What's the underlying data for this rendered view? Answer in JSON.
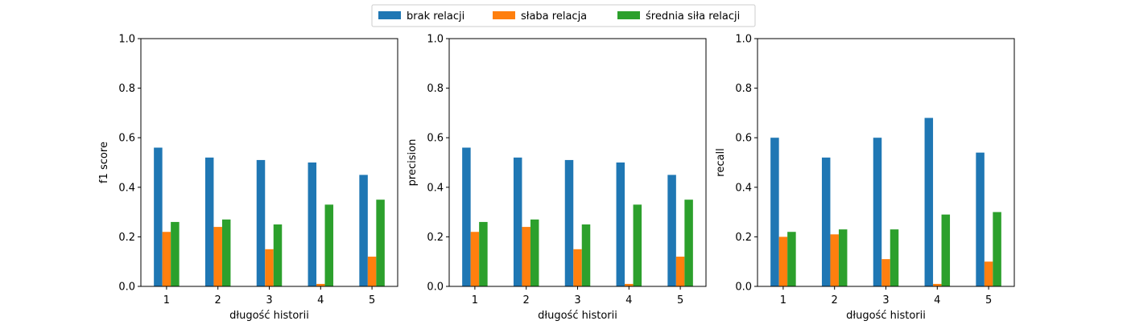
{
  "legend": {
    "placement": "top-center",
    "entries": [
      {
        "label": "brak relacji",
        "color": "#1f77b4"
      },
      {
        "label": "słaba relacja",
        "color": "#ff7f0e"
      },
      {
        "label": "średnia siła relacji",
        "color": "#2ca02c"
      }
    ]
  },
  "chart_data": [
    {
      "type": "bar",
      "xlabel": "długość historii",
      "ylabel": "f1 score",
      "categories": [
        "1",
        "2",
        "3",
        "4",
        "5"
      ],
      "ylim": [
        0,
        1
      ],
      "yticks": [
        "0.0",
        "0.2",
        "0.4",
        "0.6",
        "0.8",
        "1.0"
      ],
      "grid": false,
      "series": [
        {
          "name": "brak relacji",
          "values": [
            0.56,
            0.52,
            0.51,
            0.5,
            0.45
          ]
        },
        {
          "name": "słaba relacja",
          "values": [
            0.22,
            0.24,
            0.15,
            0.01,
            0.12
          ]
        },
        {
          "name": "średnia siła relacji",
          "values": [
            0.26,
            0.27,
            0.25,
            0.33,
            0.35
          ]
        }
      ]
    },
    {
      "type": "bar",
      "xlabel": "długość historii",
      "ylabel": "precision",
      "categories": [
        "1",
        "2",
        "3",
        "4",
        "5"
      ],
      "ylim": [
        0,
        1
      ],
      "yticks": [
        "0.0",
        "0.2",
        "0.4",
        "0.6",
        "0.8",
        "1.0"
      ],
      "grid": false,
      "series": [
        {
          "name": "brak relacji",
          "values": [
            0.56,
            0.52,
            0.51,
            0.5,
            0.45
          ]
        },
        {
          "name": "słaba relacja",
          "values": [
            0.22,
            0.24,
            0.15,
            0.01,
            0.12
          ]
        },
        {
          "name": "średnia siła relacji",
          "values": [
            0.26,
            0.27,
            0.25,
            0.33,
            0.35
          ]
        }
      ]
    },
    {
      "type": "bar",
      "xlabel": "długość historii",
      "ylabel": "recall",
      "categories": [
        "1",
        "2",
        "3",
        "4",
        "5"
      ],
      "ylim": [
        0,
        1
      ],
      "yticks": [
        "0.0",
        "0.2",
        "0.4",
        "0.6",
        "0.8",
        "1.0"
      ],
      "grid": false,
      "series": [
        {
          "name": "brak relacji",
          "values": [
            0.6,
            0.52,
            0.6,
            0.68,
            0.54
          ]
        },
        {
          "name": "słaba relacja",
          "values": [
            0.2,
            0.21,
            0.11,
            0.01,
            0.1
          ]
        },
        {
          "name": "średnia siła relacji",
          "values": [
            0.22,
            0.23,
            0.23,
            0.29,
            0.3
          ]
        }
      ]
    }
  ]
}
